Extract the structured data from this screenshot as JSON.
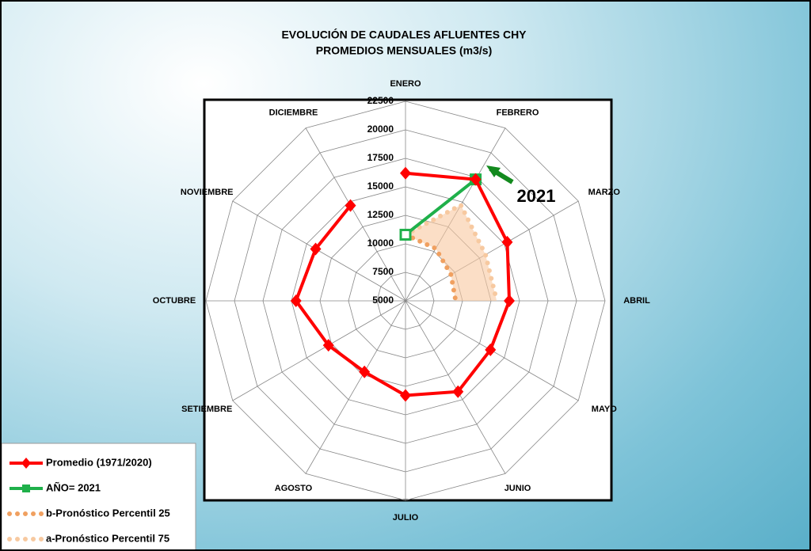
{
  "chart_data": {
    "type": "radar",
    "title": "EVOLUCIÓN DE CAUDALES AFLUENTES CHY",
    "subtitle": "PROMEDIOS MENSUALES (m3/s)",
    "categories": [
      "ENERO",
      "FEBRERO",
      "MARZO",
      "ABRIL",
      "MAYO",
      "JUNIO",
      "JULIO",
      "AGOSTO",
      "SETIEMBRE",
      "OCTUBRE",
      "NOVIEMBRE",
      "DICIEMBRE"
    ],
    "ylim": [
      5000,
      22500
    ],
    "yticks": [
      5000,
      7500,
      10000,
      12500,
      15000,
      17500,
      20000,
      22500
    ],
    "grid": true,
    "legend": "bottom-left",
    "series": [
      {
        "name": "Promedio (1971/2020)",
        "color": "#ff0000",
        "marker": "diamond",
        "values": [
          16200,
          17300,
          15300,
          14100,
          13600,
          14200,
          13300,
          12200,
          12800,
          14600,
          14100,
          14650
        ]
      },
      {
        "name": "AÑO= 2021",
        "color": "#1fb04a",
        "marker": "square",
        "values": [
          10800,
          17300,
          null,
          null,
          null,
          null,
          null,
          null,
          null,
          null,
          null,
          null
        ]
      },
      {
        "name": "b-Pronóstico Percentil 25",
        "color": "#f0a060",
        "marker": "dot",
        "values": [
          10800,
          10300,
          9600,
          9400,
          null,
          null,
          null,
          null,
          null,
          null,
          null,
          null
        ]
      },
      {
        "name": "a-Pronóstico Percentil 75",
        "color": "#f7c9a0",
        "marker": "dot",
        "values": [
          10800,
          14700,
          13100,
          13000,
          null,
          null,
          null,
          null,
          null,
          null,
          null,
          null
        ]
      }
    ],
    "annotations": [
      {
        "text": "2021",
        "color": "#138a1e"
      }
    ]
  }
}
